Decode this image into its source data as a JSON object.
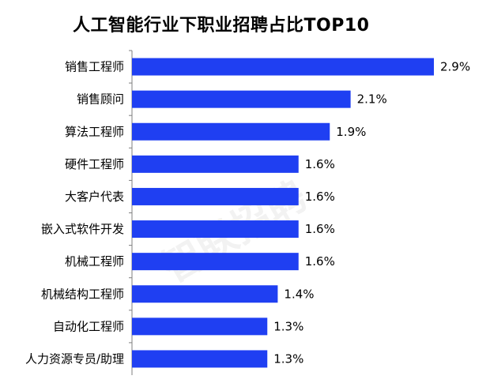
{
  "chart_data": {
    "type": "bar",
    "orientation": "horizontal",
    "title": "人工智能行业下职业招聘占比TOP10",
    "categories": [
      "销售工程师",
      "销售顾问",
      "算法工程师",
      "硬件工程师",
      "大客户代表",
      "嵌入式软件开发",
      "机械工程师",
      "机械结构工程师",
      "自动化工程师",
      "人力资源专员/助理"
    ],
    "values": [
      2.9,
      2.1,
      1.9,
      1.6,
      1.6,
      1.6,
      1.6,
      1.4,
      1.3,
      1.3
    ],
    "value_labels": [
      "2.9%",
      "2.1%",
      "1.9%",
      "1.6%",
      "1.6%",
      "1.6%",
      "1.6%",
      "1.4%",
      "1.3%",
      "1.3%"
    ],
    "bar_color": "#1f3ff2",
    "xlabel": "",
    "ylabel": "",
    "grid": false,
    "legend": "none"
  },
  "watermark": "智联招聘"
}
